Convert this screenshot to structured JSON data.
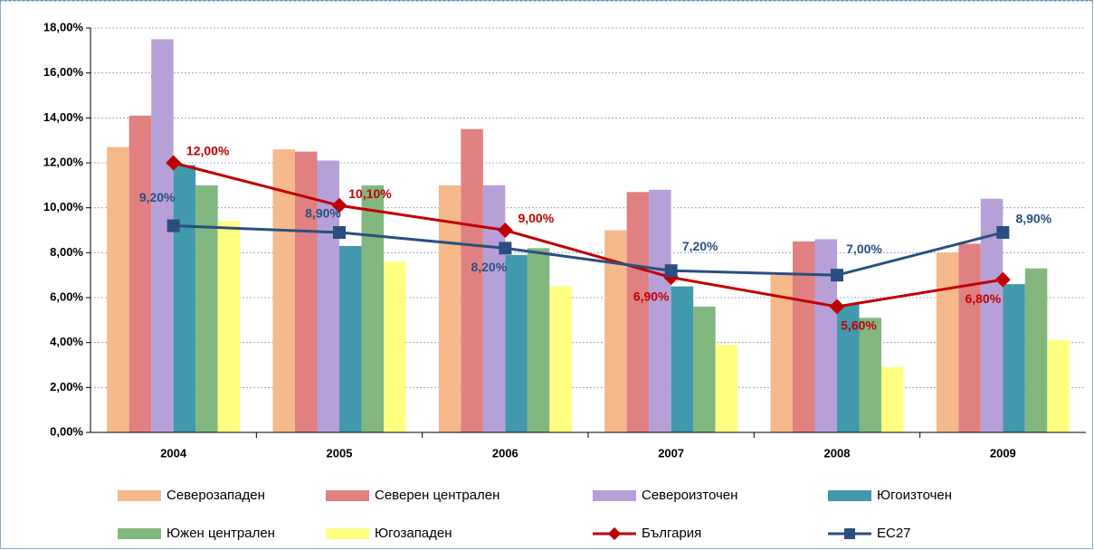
{
  "chart_data": {
    "type": "bar",
    "categories": [
      "2004",
      "2005",
      "2006",
      "2007",
      "2008",
      "2009"
    ],
    "series": [
      {
        "name": "Северозападен",
        "color": "#f5b98b",
        "values": [
          12.7,
          12.6,
          11.0,
          9.0,
          7.0,
          8.0
        ]
      },
      {
        "name": "Северен централен",
        "color": "#e08080",
        "values": [
          14.1,
          12.5,
          13.5,
          10.7,
          8.5,
          8.4
        ]
      },
      {
        "name": "Североизточен",
        "color": "#b7a0d8",
        "values": [
          17.5,
          12.1,
          11.0,
          10.8,
          8.6,
          10.4
        ]
      },
      {
        "name": "Югоизточен",
        "color": "#4299ab",
        "values": [
          11.9,
          8.3,
          7.9,
          6.5,
          5.7,
          6.6
        ]
      },
      {
        "name": "Южен централен",
        "color": "#82b780",
        "values": [
          11.0,
          11.0,
          8.2,
          5.6,
          5.1,
          7.3
        ]
      },
      {
        "name": "Югозападен",
        "color": "#ffff80",
        "values": [
          9.4,
          7.6,
          6.5,
          3.9,
          2.9,
          4.1
        ]
      },
      {
        "name": "България",
        "type": "line",
        "color": "#c00000",
        "values": [
          12.0,
          10.1,
          9.0,
          6.9,
          5.6,
          6.8
        ],
        "value_labels": [
          "12,00%",
          "10,10%",
          "9,00%",
          "6,90%",
          "5,60%",
          "6,80%"
        ]
      },
      {
        "name": "EC27",
        "type": "line",
        "color": "#2a4f7f",
        "values": [
          9.2,
          8.9,
          8.2,
          7.2,
          7.0,
          8.9
        ],
        "value_labels": [
          "9,20%",
          "8,90%",
          "8,20%",
          "7,20%",
          "7,00%",
          "8,90%"
        ]
      }
    ],
    "ylim": [
      0,
      18
    ],
    "yticks": [
      {
        "value": 0,
        "label": "0,00%"
      },
      {
        "value": 2,
        "label": "2,00%"
      },
      {
        "value": 4,
        "label": "4,00%"
      },
      {
        "value": 6,
        "label": "6,00%"
      },
      {
        "value": 8,
        "label": "8,00%"
      },
      {
        "value": 10,
        "label": "10,00%"
      },
      {
        "value": 12,
        "label": "12,00%"
      },
      {
        "value": 14,
        "label": "14,00%"
      },
      {
        "value": 16,
        "label": "16,00%"
      },
      {
        "value": 18,
        "label": "18,00%"
      }
    ],
    "grid": true
  }
}
